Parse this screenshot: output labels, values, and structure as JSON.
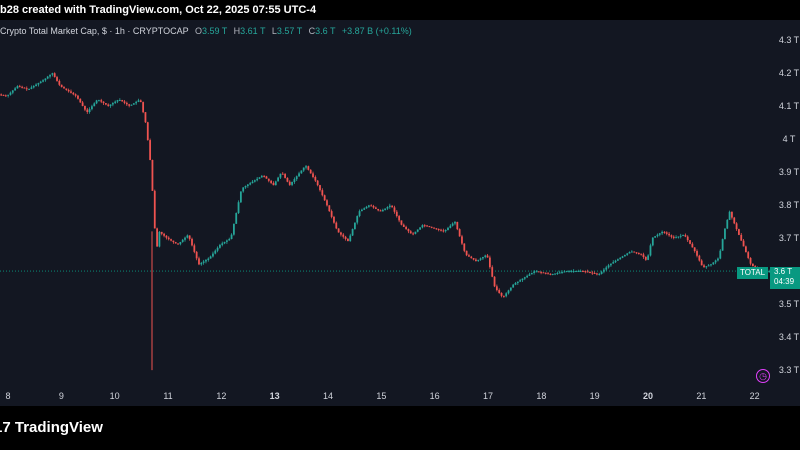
{
  "header": {
    "text": "b28 created with TradingView.com, Oct 22, 2025 07:55 UTC-4"
  },
  "legend": {
    "title": "Crypto Total Market Cap, $ · 1h · CRYPTOCAP",
    "o_label": "O",
    "o_value": "3.59 T",
    "h_label": "H",
    "h_value": "3.61 T",
    "l_label": "L",
    "l_value": "3.57 T",
    "c_label": "C",
    "c_value": "3.6 T",
    "change": "+3.87 B (+0.11%)"
  },
  "price_label": {
    "name": "TOTAL",
    "value": "3.6 T",
    "countdown": "04:39"
  },
  "footer": {
    "brand": "TradingView"
  },
  "icons": {
    "alert": "alert-clock-icon",
    "logo": "tradingview-logo-icon"
  },
  "colors": {
    "up": "#26a69a",
    "down": "#ef5350",
    "background": "#131722",
    "last_price": "#089981"
  },
  "chart_data": {
    "type": "candlestick",
    "title": "Crypto Total Market Cap, $ · 1h · CRYPTOCAP",
    "x_ticks": [
      "8",
      "9",
      "10",
      "11",
      "12",
      "13",
      "14",
      "15",
      "16",
      "17",
      "18",
      "19",
      "20",
      "21",
      "22"
    ],
    "y_ticks": [
      "4.3 T",
      "4.2 T",
      "4.1 T",
      "4 T",
      "3.9 T",
      "3.8 T",
      "3.7 T",
      "3.6 T",
      "3.5 T",
      "3.4 T",
      "3.3 T"
    ],
    "ylim": [
      3.27,
      4.33
    ],
    "xlim": [
      7.85,
      22.25
    ],
    "last_price": 3.6,
    "grid": false,
    "series": [
      {
        "values": [
          {
            "x": 7.85,
            "y": 4.135
          },
          {
            "x": 8.0,
            "y": 4.13
          },
          {
            "x": 8.2,
            "y": 4.16
          },
          {
            "x": 8.4,
            "y": 4.15
          },
          {
            "x": 8.7,
            "y": 4.18
          },
          {
            "x": 8.85,
            "y": 4.2
          },
          {
            "x": 9.0,
            "y": 4.16
          },
          {
            "x": 9.3,
            "y": 4.13
          },
          {
            "x": 9.5,
            "y": 4.08
          },
          {
            "x": 9.7,
            "y": 4.12
          },
          {
            "x": 9.9,
            "y": 4.1
          },
          {
            "x": 10.1,
            "y": 4.12
          },
          {
            "x": 10.3,
            "y": 4.1
          },
          {
            "x": 10.5,
            "y": 4.12
          },
          {
            "x": 10.6,
            "y": 4.05
          },
          {
            "x": 10.68,
            "y": 3.95
          },
          {
            "x": 10.75,
            "y": 3.8
          },
          {
            "x": 10.8,
            "y": 3.65
          },
          {
            "x": 10.85,
            "y": 3.72
          },
          {
            "x": 11.0,
            "y": 3.7
          },
          {
            "x": 11.2,
            "y": 3.68
          },
          {
            "x": 11.4,
            "y": 3.71
          },
          {
            "x": 11.6,
            "y": 3.62
          },
          {
            "x": 11.8,
            "y": 3.64
          },
          {
            "x": 12.0,
            "y": 3.68
          },
          {
            "x": 12.2,
            "y": 3.7
          },
          {
            "x": 12.4,
            "y": 3.85
          },
          {
            "x": 12.6,
            "y": 3.87
          },
          {
            "x": 12.8,
            "y": 3.89
          },
          {
            "x": 13.0,
            "y": 3.86
          },
          {
            "x": 13.15,
            "y": 3.9
          },
          {
            "x": 13.3,
            "y": 3.86
          },
          {
            "x": 13.6,
            "y": 3.92
          },
          {
            "x": 13.8,
            "y": 3.87
          },
          {
            "x": 14.0,
            "y": 3.8
          },
          {
            "x": 14.2,
            "y": 3.72
          },
          {
            "x": 14.4,
            "y": 3.69
          },
          {
            "x": 14.6,
            "y": 3.78
          },
          {
            "x": 14.8,
            "y": 3.8
          },
          {
            "x": 15.0,
            "y": 3.78
          },
          {
            "x": 15.2,
            "y": 3.8
          },
          {
            "x": 15.4,
            "y": 3.74
          },
          {
            "x": 15.6,
            "y": 3.71
          },
          {
            "x": 15.8,
            "y": 3.74
          },
          {
            "x": 16.0,
            "y": 3.73
          },
          {
            "x": 16.2,
            "y": 3.72
          },
          {
            "x": 16.4,
            "y": 3.75
          },
          {
            "x": 16.6,
            "y": 3.65
          },
          {
            "x": 16.8,
            "y": 3.63
          },
          {
            "x": 17.0,
            "y": 3.65
          },
          {
            "x": 17.15,
            "y": 3.55
          },
          {
            "x": 17.3,
            "y": 3.52
          },
          {
            "x": 17.5,
            "y": 3.56
          },
          {
            "x": 17.7,
            "y": 3.58
          },
          {
            "x": 17.9,
            "y": 3.6
          },
          {
            "x": 18.2,
            "y": 3.59
          },
          {
            "x": 18.5,
            "y": 3.6
          },
          {
            "x": 18.8,
            "y": 3.6
          },
          {
            "x": 19.1,
            "y": 3.59
          },
          {
            "x": 19.3,
            "y": 3.62
          },
          {
            "x": 19.5,
            "y": 3.64
          },
          {
            "x": 19.7,
            "y": 3.66
          },
          {
            "x": 19.9,
            "y": 3.65
          },
          {
            "x": 20.0,
            "y": 3.63
          },
          {
            "x": 20.1,
            "y": 3.7
          },
          {
            "x": 20.3,
            "y": 3.72
          },
          {
            "x": 20.5,
            "y": 3.7
          },
          {
            "x": 20.7,
            "y": 3.71
          },
          {
            "x": 20.9,
            "y": 3.66
          },
          {
            "x": 21.05,
            "y": 3.61
          },
          {
            "x": 21.2,
            "y": 3.62
          },
          {
            "x": 21.35,
            "y": 3.64
          },
          {
            "x": 21.45,
            "y": 3.72
          },
          {
            "x": 21.55,
            "y": 3.78
          },
          {
            "x": 21.65,
            "y": 3.74
          },
          {
            "x": 21.8,
            "y": 3.68
          },
          {
            "x": 21.95,
            "y": 3.62
          },
          {
            "x": 22.1,
            "y": 3.6
          },
          {
            "x": 22.2,
            "y": 3.6
          }
        ]
      }
    ],
    "annotations": [
      {
        "type": "wick",
        "x": 10.7,
        "low": 3.3
      }
    ]
  }
}
